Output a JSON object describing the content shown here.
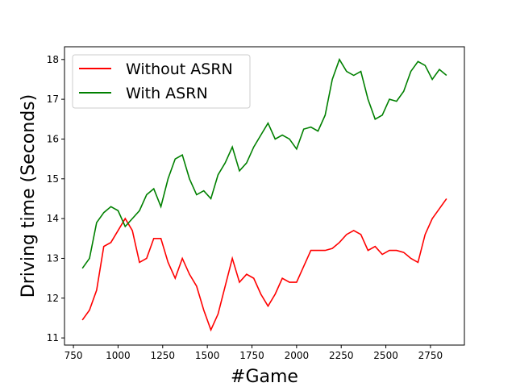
{
  "chart_data": {
    "type": "line",
    "x_label": "#Game",
    "y_label": "Driving time (Seconds)",
    "x": [
      800,
      840,
      880,
      920,
      960,
      1000,
      1040,
      1080,
      1120,
      1160,
      1200,
      1240,
      1280,
      1320,
      1360,
      1400,
      1440,
      1480,
      1520,
      1560,
      1600,
      1640,
      1680,
      1720,
      1760,
      1800,
      1840,
      1880,
      1920,
      1960,
      2000,
      2040,
      2080,
      2120,
      2160,
      2200,
      2240,
      2280,
      2320,
      2360,
      2400,
      2440,
      2480,
      2520,
      2560,
      2600,
      2640,
      2680,
      2720,
      2760,
      2800,
      2840
    ],
    "series": [
      {
        "name": "Without ASRN",
        "color": "#ff0000",
        "values": [
          11.45,
          11.7,
          12.2,
          13.3,
          13.4,
          13.7,
          14.0,
          13.7,
          12.9,
          13.0,
          13.5,
          13.5,
          12.9,
          12.5,
          13.0,
          12.6,
          12.3,
          11.7,
          11.2,
          11.6,
          12.3,
          13.0,
          12.4,
          12.6,
          12.5,
          12.1,
          11.8,
          12.1,
          12.5,
          12.4,
          12.4,
          12.8,
          13.2,
          13.2,
          13.2,
          13.25,
          13.4,
          13.6,
          13.7,
          13.6,
          13.2,
          13.3,
          13.1,
          13.2,
          13.2,
          13.15,
          13.0,
          12.9,
          13.6,
          14.0,
          14.25,
          14.5
        ]
      },
      {
        "name": "With ASRN",
        "color": "#008000",
        "values": [
          12.75,
          13.0,
          13.9,
          14.15,
          14.3,
          14.2,
          13.8,
          14.0,
          14.2,
          14.6,
          14.75,
          14.3,
          15.0,
          15.5,
          15.6,
          15.0,
          14.6,
          14.7,
          14.5,
          15.1,
          15.4,
          15.8,
          15.2,
          15.4,
          15.8,
          16.1,
          16.4,
          16.0,
          16.1,
          16.0,
          15.75,
          16.25,
          16.3,
          16.2,
          16.6,
          17.5,
          18.0,
          17.7,
          17.6,
          17.7,
          17.0,
          16.5,
          16.6,
          17.0,
          16.95,
          17.2,
          17.7,
          17.95,
          17.85,
          17.5,
          17.75,
          17.6
        ]
      }
    ],
    "xlim": [
      700,
      2940
    ],
    "ylim": [
      10.82,
      18.32
    ],
    "xticks": [
      750,
      1000,
      1250,
      1500,
      1750,
      2000,
      2250,
      2500,
      2750
    ],
    "yticks": [
      11,
      12,
      13,
      14,
      15,
      16,
      17,
      18
    ],
    "legend": "upper left",
    "grid": false
  }
}
